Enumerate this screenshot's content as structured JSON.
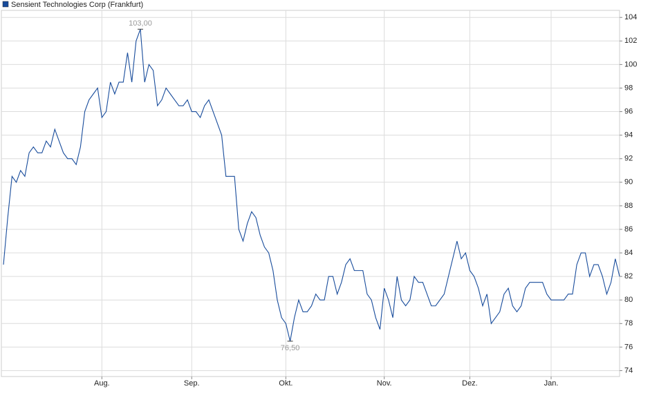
{
  "chart_data": {
    "type": "line",
    "series": [
      {
        "name": "Sensient Technologies Corp (Frankfurt)",
        "color": "#174b9b",
        "values": [
          83,
          87,
          90.5,
          90,
          91,
          90.5,
          92.5,
          93,
          92.5,
          92.5,
          93.5,
          93,
          94.5,
          93.5,
          92.5,
          92,
          92,
          91.5,
          93,
          96,
          97,
          97.5,
          98,
          95.5,
          96,
          98.5,
          97.5,
          98.5,
          98.5,
          101,
          98.5,
          102,
          103,
          98.5,
          100,
          99.5,
          96.5,
          97,
          98,
          97.5,
          97,
          96.5,
          96.5,
          97,
          96,
          96,
          95.5,
          96.5,
          97,
          96,
          95,
          94,
          90.5,
          90.5,
          90.5,
          86,
          85,
          86.5,
          87.5,
          87,
          85.5,
          84.5,
          84,
          82.5,
          80,
          78.5,
          78,
          76.5,
          78.5,
          80,
          79,
          79,
          79.5,
          80.5,
          80,
          80,
          82,
          82,
          80.5,
          81.5,
          83,
          83.5,
          82.5,
          82.5,
          82.5,
          80.5,
          80,
          78.5,
          77.5,
          81,
          80,
          78.5,
          82,
          80,
          79.5,
          80,
          82,
          81.5,
          81.5,
          80.5,
          79.5,
          79.5,
          80,
          80.5,
          82,
          83.5,
          85,
          83.5,
          84,
          82.5,
          82,
          81,
          79.5,
          80.5,
          78,
          78.5,
          79,
          80.5,
          81,
          79.5,
          79,
          79.5,
          81,
          81.5,
          81.5,
          81.5,
          81.5,
          80.5,
          80,
          80,
          80,
          80,
          80.5,
          80.5,
          83,
          84,
          84,
          82,
          83,
          83,
          82,
          80.5,
          81.5,
          83.5,
          82
        ]
      }
    ],
    "categories": [
      null,
      null,
      null,
      null,
      null,
      null,
      null,
      null,
      null,
      null,
      null,
      null,
      null,
      null,
      null,
      null,
      null,
      null,
      null,
      null,
      null,
      null,
      null,
      "Aug.",
      null,
      null,
      null,
      null,
      null,
      null,
      null,
      null,
      null,
      null,
      null,
      null,
      null,
      null,
      null,
      null,
      null,
      null,
      null,
      null,
      "Sep.",
      null,
      null,
      null,
      null,
      null,
      null,
      null,
      null,
      null,
      null,
      null,
      null,
      null,
      null,
      null,
      null,
      null,
      null,
      null,
      null,
      null,
      "Okt.",
      null,
      null,
      null,
      null,
      null,
      null,
      null,
      null,
      null,
      null,
      null,
      null,
      null,
      null,
      null,
      null,
      null,
      null,
      null,
      null,
      null,
      null,
      "Nov.",
      null,
      null,
      null,
      null,
      null,
      null,
      null,
      null,
      null,
      null,
      null,
      null,
      null,
      null,
      null,
      null,
      null,
      null,
      null,
      "Dez.",
      null,
      null,
      null,
      null,
      null,
      null,
      null,
      null,
      null,
      null,
      null,
      null,
      null,
      null,
      null,
      null,
      null,
      null,
      "Jan.",
      null,
      null,
      null,
      null,
      null,
      null,
      null,
      null,
      null,
      null,
      null,
      null,
      null,
      null,
      null,
      null
    ],
    "annotations": [
      {
        "value": 103,
        "label": "103,00"
      },
      {
        "value": 76.5,
        "label": "76,50"
      }
    ],
    "ylim": [
      73.5,
      104.6
    ],
    "yticks": [
      74,
      76,
      78,
      80,
      82,
      84,
      86,
      88,
      90,
      92,
      94,
      96,
      98,
      100,
      102,
      104
    ],
    "grid": true,
    "legend": "top-left"
  }
}
